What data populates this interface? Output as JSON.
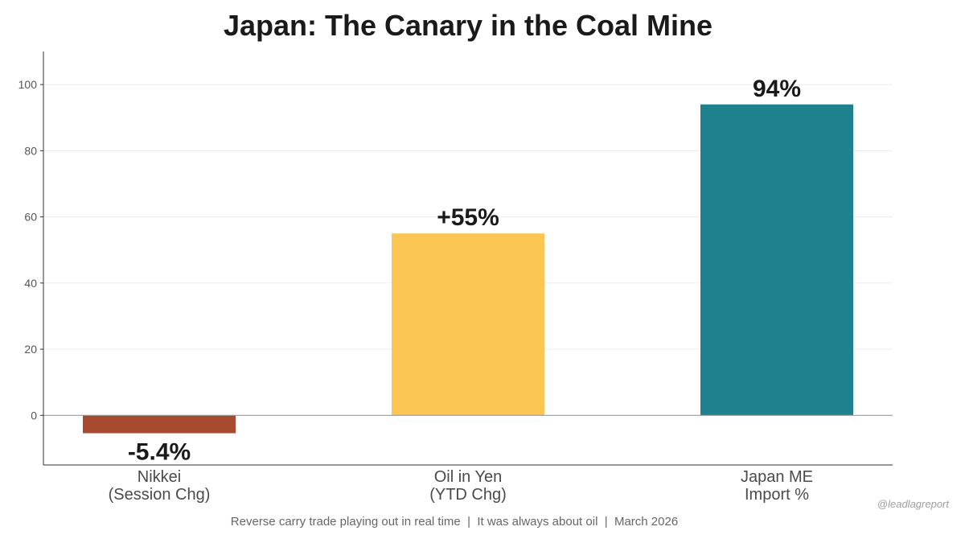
{
  "chart_data": {
    "type": "bar",
    "title": "Japan: The Canary in the Coal Mine",
    "categories": [
      [
        "Nikkei",
        "(Session Chg)"
      ],
      [
        "Oil in Yen",
        "(YTD Chg)"
      ],
      [
        "Japan ME",
        "Import %"
      ]
    ],
    "values": [
      -5.4,
      55,
      94
    ],
    "data_labels": [
      "-5.4%",
      "+55%",
      "94%"
    ],
    "colors": [
      "#a84a30",
      "#fcc654",
      "#20818e"
    ],
    "ylim": [
      -15,
      110
    ],
    "yticks": [
      0,
      20,
      40,
      60,
      80,
      100
    ],
    "xlabel": "",
    "ylabel": "",
    "grid": true,
    "footnote": "Reverse carry trade playing out in real time  |  It was always about oil  |  March 2026",
    "watermark": "@leadlagreport"
  }
}
